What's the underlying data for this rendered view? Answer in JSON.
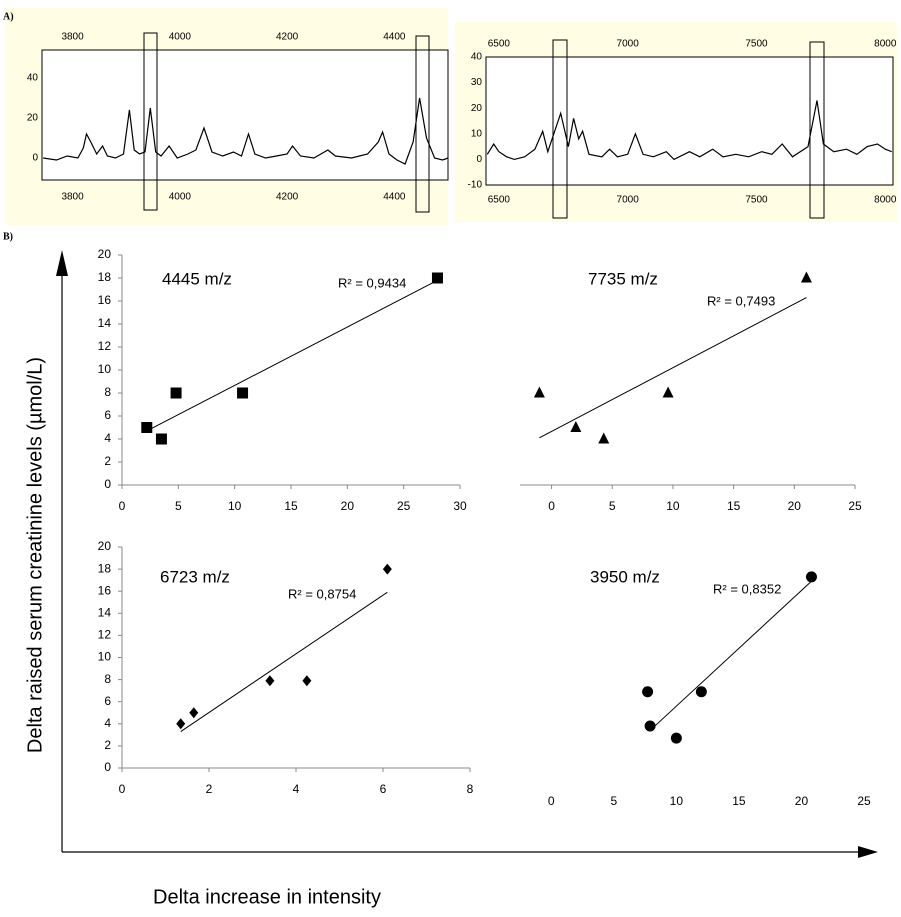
{
  "panel_labels": [
    "A)",
    "B)"
  ],
  "y_label": "Delta raised serum creatinine levels (µmol/L)",
  "x_label": "Delta increase in intensity",
  "chart_data": [
    {
      "type": "line",
      "color": "#000000",
      "xlim": [
        3743,
        4500
      ],
      "xticks": [
        3800,
        4000,
        4200,
        4400
      ],
      "ylim": [
        -11,
        54
      ],
      "yticks": [
        0,
        20,
        40
      ],
      "x": [
        3745,
        3770,
        3790,
        3810,
        3820,
        3826,
        3834,
        3845,
        3856,
        3865,
        3880,
        3895,
        3906,
        3915,
        3925,
        3935,
        3945,
        3955,
        3965,
        3980,
        3995,
        4015,
        4030,
        4045,
        4060,
        4080,
        4100,
        4115,
        4128,
        4140,
        4160,
        4180,
        4200,
        4210,
        4225,
        4250,
        4276,
        4290,
        4320,
        4350,
        4370,
        4378,
        4390,
        4405,
        4420,
        4435,
        4447,
        4460,
        4475,
        4490,
        4500
      ],
      "values": [
        0,
        -1,
        1,
        0,
        5,
        12,
        8,
        2,
        6,
        1,
        0,
        2,
        24,
        4,
        2,
        3,
        25,
        3,
        1,
        6,
        0,
        2,
        4,
        15,
        3,
        1,
        3,
        1,
        12,
        2,
        0,
        1,
        2,
        6,
        1,
        0,
        4,
        1,
        0,
        2,
        8,
        13,
        2,
        -1,
        -3,
        8,
        30,
        10,
        0,
        -1,
        0
      ]
    },
    {
      "type": "line",
      "color": "#000000",
      "xlim": [
        6450,
        8030
      ],
      "xticks": [
        6500,
        7000,
        7500,
        8000
      ],
      "ylim": [
        -10,
        40
      ],
      "yticks": [
        -10,
        0,
        10,
        20,
        30,
        40
      ],
      "x": [
        6455,
        6480,
        6500,
        6530,
        6560,
        6600,
        6640,
        6670,
        6690,
        6740,
        6770,
        6790,
        6810,
        6825,
        6850,
        6900,
        6930,
        6960,
        7000,
        7030,
        7060,
        7100,
        7150,
        7180,
        7240,
        7280,
        7330,
        7370,
        7420,
        7470,
        7520,
        7560,
        7600,
        7640,
        7700,
        7735,
        7760,
        7800,
        7850,
        7890,
        7930,
        7970,
        8000,
        8025
      ],
      "values": [
        2,
        6,
        3,
        1,
        0,
        1,
        4,
        11,
        3,
        18,
        5,
        16,
        8,
        11,
        2,
        1,
        4,
        1,
        2,
        10,
        2,
        1,
        3,
        0,
        3,
        1,
        4,
        1,
        2,
        1,
        3,
        2,
        6,
        1,
        5,
        23,
        6,
        3,
        4,
        2,
        5,
        6,
        4,
        3
      ]
    },
    {
      "type": "scatter",
      "title": "4445 m/z",
      "annotation": "R² = 0,9434",
      "marker": "square",
      "color": "#000000",
      "x": [
        2.2,
        3.5,
        4.8,
        10.7,
        28
      ],
      "values": [
        5,
        4,
        8,
        8,
        18
      ],
      "trendline": {
        "x": [
          2.2,
          28
        ],
        "values": [
          4.7,
          17.8
        ]
      },
      "xlim": [
        0,
        30
      ],
      "xticks": [
        0,
        5,
        10,
        15,
        20,
        25,
        30
      ],
      "ylim": [
        0,
        20
      ],
      "yticks": [
        0,
        2,
        4,
        6,
        8,
        10,
        12,
        14,
        16,
        18,
        20
      ]
    },
    {
      "type": "scatter",
      "title": "7735 m/z",
      "annotation": "R² = 0,7493",
      "marker": "triangle",
      "color": "#000000",
      "x": [
        -1,
        2,
        4.3,
        9.6,
        21
      ],
      "values": [
        8,
        5,
        4,
        8,
        18
      ],
      "trendline": {
        "x": [
          -1,
          21
        ],
        "values": [
          4.1,
          16.3
        ]
      },
      "xlim": [
        -2.6,
        25
      ],
      "xticks": [
        0,
        5,
        10,
        15,
        20,
        25
      ],
      "ylim": [
        0,
        20
      ]
    },
    {
      "type": "scatter",
      "title": "6723 m/z",
      "annotation": "R² = 0,8754",
      "marker": "diamond",
      "color": "#000000",
      "x": [
        1.35,
        1.65,
        3.4,
        4.25,
        6.1
      ],
      "values": [
        4,
        5,
        7.9,
        7.9,
        18
      ],
      "trendline": {
        "x": [
          1.35,
          6.1
        ],
        "values": [
          3.3,
          15.9
        ]
      },
      "xlim": [
        0,
        8
      ],
      "xticks": [
        0,
        2,
        4,
        6,
        8
      ],
      "ylim": [
        0,
        20
      ],
      "yticks": [
        0,
        2,
        4,
        6,
        8,
        10,
        12,
        14,
        16,
        18,
        20
      ]
    },
    {
      "type": "scatter",
      "title": "3950 m/z",
      "annotation": "R² = 0,8352",
      "marker": "circle",
      "color": "#000000",
      "x": [
        7.7,
        7.9,
        10,
        12,
        20.8
      ],
      "values": [
        6.9,
        3.8,
        2.7,
        6.9,
        17.3
      ],
      "trendline": {
        "x": [
          7.9,
          20.8
        ],
        "values": [
          3.4,
          16.9
        ]
      },
      "xlim": [
        -2.5,
        25
      ],
      "xticks": [
        0,
        5,
        10,
        15,
        20,
        25
      ],
      "ylim": [
        0,
        20
      ]
    }
  ]
}
